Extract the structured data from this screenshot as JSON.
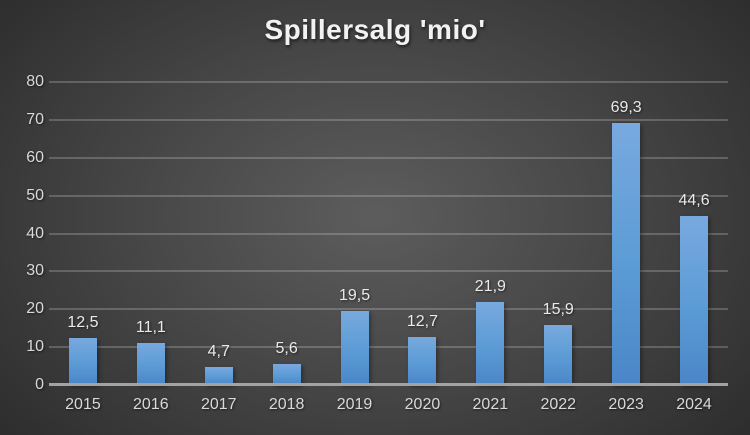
{
  "chart": {
    "colors": {
      "bar_accent": "#5b9bd5",
      "bar_gradient_top": "#78a9df",
      "bar_gradient_bottom": "#4a86c8",
      "axis_line": "#a3a3a3",
      "gridline": "rgba(255,255,255,0.20)",
      "tick_label": "#d9d9d9",
      "data_label": "#eaeaea",
      "title": "#f2f2f2",
      "background_center": "#5d5d5d",
      "background_edge": "#242424"
    }
  },
  "chart_data": {
    "type": "bar",
    "title": "Spillersalg 'mio'",
    "categories": [
      "2015",
      "2016",
      "2017",
      "2018",
      "2019",
      "2020",
      "2021",
      "2022",
      "2023",
      "2024"
    ],
    "values": [
      12.5,
      11.1,
      4.7,
      5.6,
      19.5,
      12.7,
      21.9,
      15.9,
      69.3,
      44.6
    ],
    "data_labels": [
      "12,5",
      "11,1",
      "4,7",
      "5,6",
      "19,5",
      "12,7",
      "21,9",
      "15,9",
      "69,3",
      "44,6"
    ],
    "xlabel": "",
    "ylabel": "",
    "ylim": [
      0,
      80
    ],
    "y_ticks": [
      0,
      10,
      20,
      30,
      40,
      50,
      60,
      70,
      80
    ],
    "grid": true,
    "legend": false
  }
}
